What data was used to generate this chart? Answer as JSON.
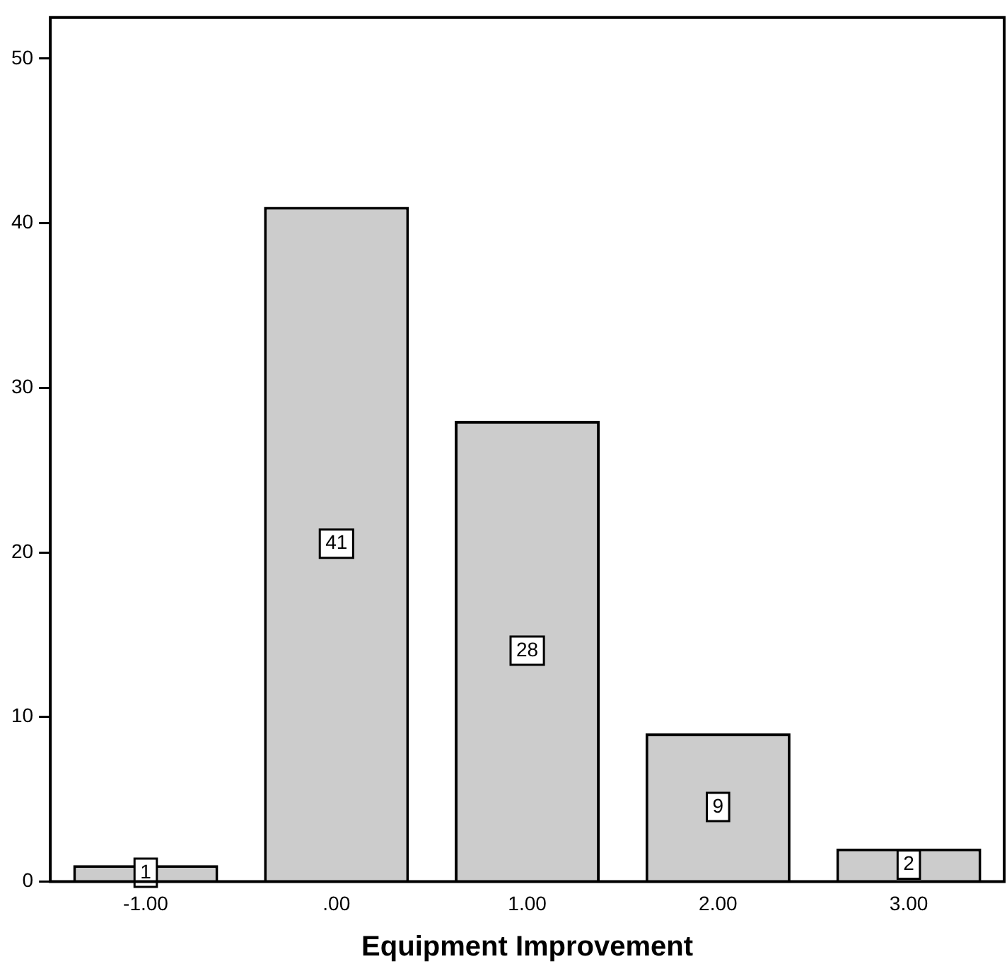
{
  "chart_data": {
    "type": "bar",
    "xlabel": "Equipment Improvement",
    "categories": [
      "-1.00",
      ".00",
      "1.00",
      "2.00",
      "3.00"
    ],
    "values": [
      1,
      41,
      28,
      9,
      2
    ],
    "color": "#cccccc",
    "ylim": [
      0,
      52.5
    ],
    "yticks": [
      0,
      10,
      20,
      30,
      40,
      50
    ],
    "grid": false,
    "legend": false,
    "data_labels": true
  }
}
